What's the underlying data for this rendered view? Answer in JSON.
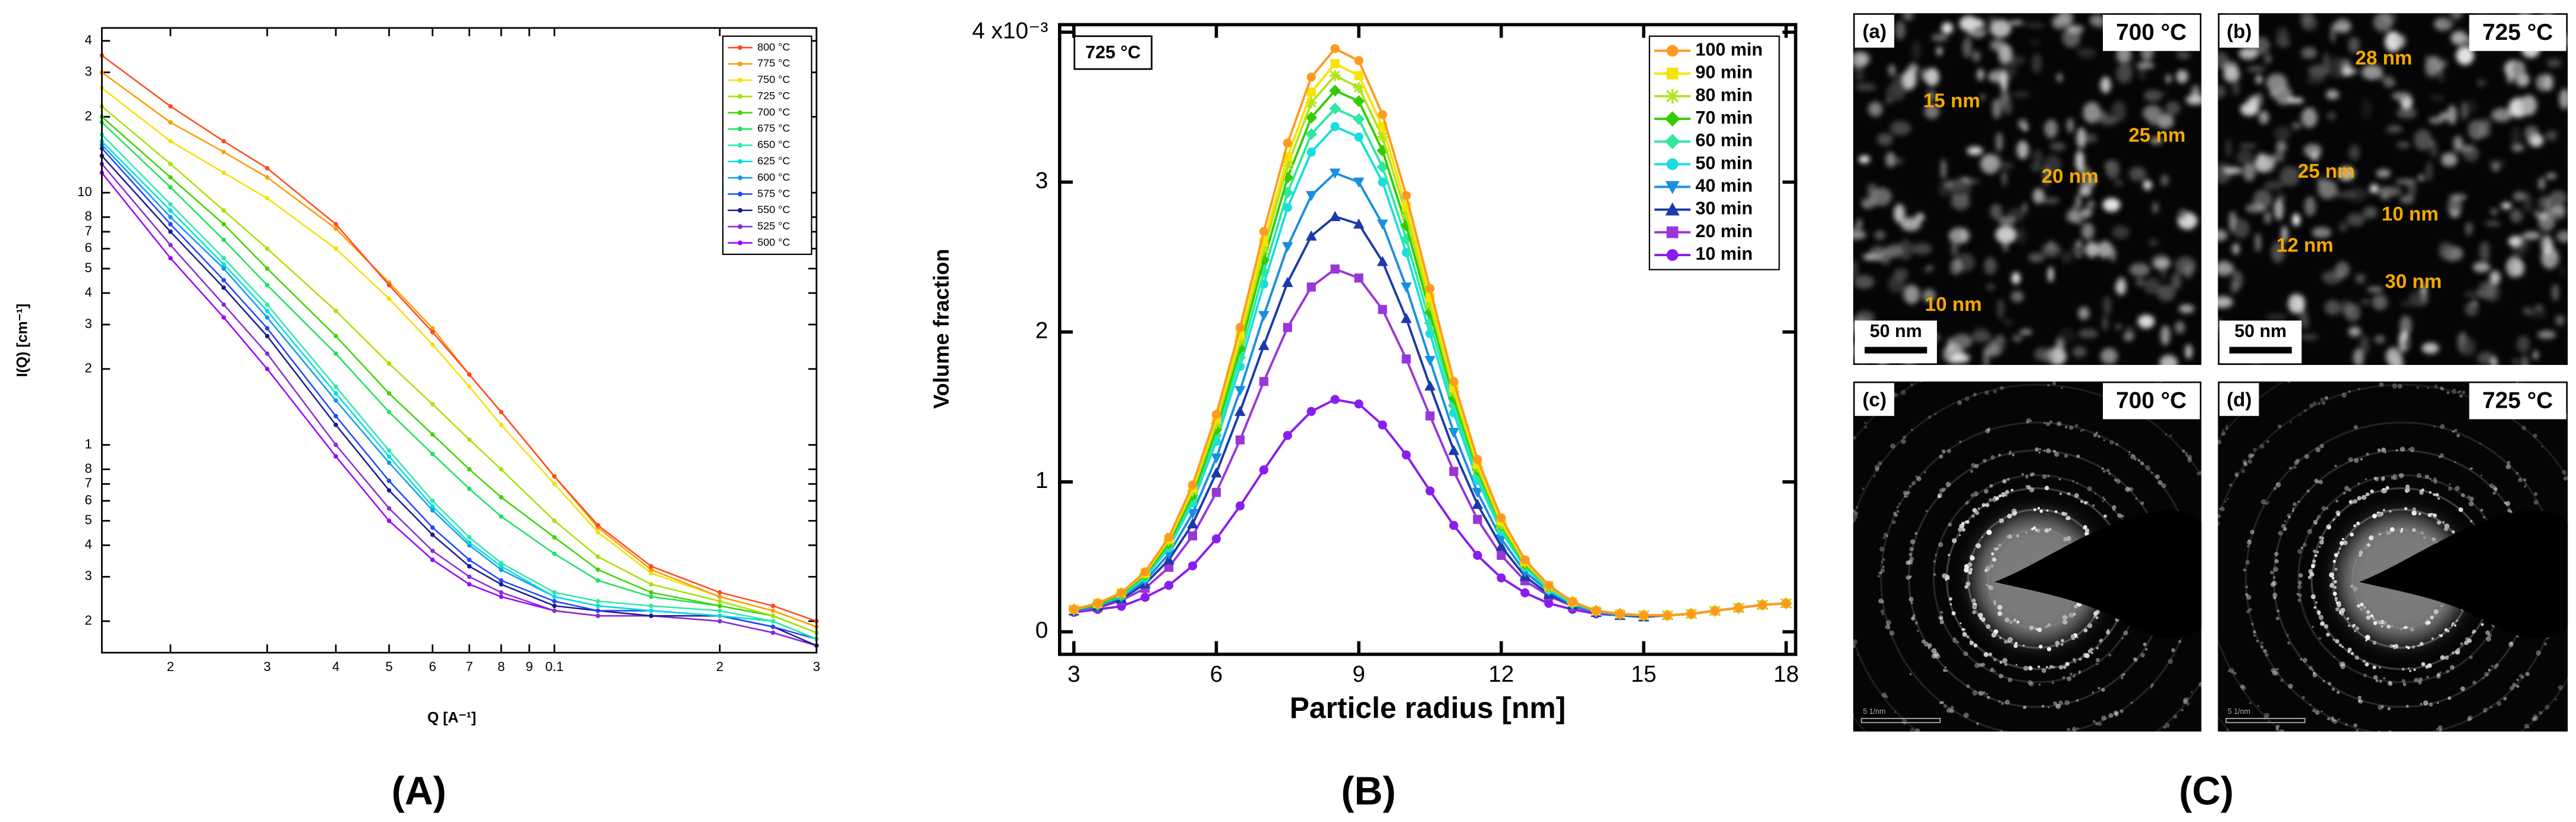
{
  "chart_data": [
    {
      "type": "line",
      "label": "(A)",
      "xlabel": "Q [A⁻¹]",
      "ylabel": "I(Q) [cm⁻¹]",
      "xlog": true,
      "ylog": true,
      "xlim": [
        0.015,
        0.3
      ],
      "ylim": [
        0.15,
        45
      ],
      "xticks": [
        {
          "value": 0.02,
          "label": "2"
        },
        {
          "value": 0.03,
          "label": "3"
        },
        {
          "value": 0.04,
          "label": "4"
        },
        {
          "value": 0.05,
          "label": "5"
        },
        {
          "value": 0.06,
          "label": "6"
        },
        {
          "value": 0.07,
          "label": "7"
        },
        {
          "value": 0.08,
          "label": "8"
        },
        {
          "value": 0.09,
          "label": "9"
        },
        0.1,
        {
          "value": 0.2,
          "label": "2"
        },
        {
          "value": 0.3,
          "label": "3"
        }
      ],
      "yticks": [
        {
          "value": 40,
          "label": "4"
        },
        {
          "value": 30,
          "label": "3"
        },
        {
          "value": 20,
          "label": "2"
        },
        10,
        8,
        7,
        6,
        5,
        4,
        3,
        2,
        1,
        {
          "value": 0.8,
          "label": "8"
        },
        {
          "value": 0.7,
          "label": "7"
        },
        {
          "value": 0.6,
          "label": "6"
        },
        {
          "value": 0.5,
          "label": "5"
        },
        {
          "value": 0.4,
          "label": "4"
        },
        {
          "value": 0.3,
          "label": "3"
        },
        {
          "value": 0.2,
          "label": "2"
        }
      ],
      "legend": "upper right",
      "x": [
        0.015,
        0.02,
        0.025,
        0.03,
        0.04,
        0.05,
        0.06,
        0.07,
        0.08,
        0.1,
        0.12,
        0.15,
        0.2,
        0.25,
        0.3
      ],
      "series": [
        {
          "name": "800 °C",
          "color": "#ff4a1c",
          "values": [
            35,
            22,
            16,
            12.5,
            7.5,
            4.3,
            2.8,
            1.9,
            1.35,
            0.75,
            0.48,
            0.33,
            0.26,
            0.23,
            0.2
          ]
        },
        {
          "name": "775 °C",
          "color": "#ff9a00",
          "values": [
            30,
            19,
            14.5,
            11.5,
            7.2,
            4.4,
            2.9,
            1.9,
            1.35,
            0.75,
            0.47,
            0.32,
            0.25,
            0.22,
            0.19
          ]
        },
        {
          "name": "750 °C",
          "color": "#f2e200",
          "values": [
            26,
            16,
            12,
            9.5,
            6.0,
            3.8,
            2.5,
            1.7,
            1.2,
            0.7,
            0.45,
            0.31,
            0.25,
            0.22,
            0.19
          ]
        },
        {
          "name": "725 °C",
          "color": "#a8e000",
          "values": [
            22,
            13,
            8.5,
            6.0,
            3.4,
            2.1,
            1.45,
            1.05,
            0.8,
            0.5,
            0.36,
            0.28,
            0.24,
            0.21,
            0.18
          ]
        },
        {
          "name": "700 °C",
          "color": "#3fd400",
          "values": [
            20,
            11.5,
            7.5,
            5.0,
            2.7,
            1.6,
            1.1,
            0.8,
            0.62,
            0.43,
            0.32,
            0.26,
            0.23,
            0.21,
            0.18
          ]
        },
        {
          "name": "675 °C",
          "color": "#1fe060",
          "values": [
            19,
            10.5,
            6.5,
            4.3,
            2.3,
            1.35,
            0.92,
            0.67,
            0.52,
            0.37,
            0.29,
            0.25,
            0.23,
            0.21,
            0.18
          ]
        },
        {
          "name": "650 °C",
          "color": "#2ee8a8",
          "values": [
            17,
            9,
            5.5,
            3.6,
            1.7,
            0.95,
            0.6,
            0.43,
            0.34,
            0.26,
            0.24,
            0.23,
            0.22,
            0.2,
            0.17
          ]
        },
        {
          "name": "625 °C",
          "color": "#00dede",
          "values": [
            16,
            8.5,
            5.2,
            3.4,
            1.6,
            0.9,
            0.57,
            0.41,
            0.33,
            0.25,
            0.23,
            0.22,
            0.21,
            0.2,
            0.17
          ]
        },
        {
          "name": "600 °C",
          "color": "#0a9cf0",
          "values": [
            15.5,
            8,
            5,
            3.2,
            1.5,
            0.85,
            0.55,
            0.4,
            0.32,
            0.25,
            0.23,
            0.22,
            0.21,
            0.2,
            0.17
          ]
        },
        {
          "name": "575 °C",
          "color": "#1f45ff",
          "values": [
            15,
            7.5,
            4.5,
            2.9,
            1.3,
            0.72,
            0.47,
            0.35,
            0.29,
            0.24,
            0.22,
            0.22,
            0.21,
            0.19,
            0.17
          ]
        },
        {
          "name": "550 °C",
          "color": "#1a1a8c",
          "values": [
            14,
            7,
            4.2,
            2.7,
            1.2,
            0.66,
            0.44,
            0.33,
            0.28,
            0.23,
            0.22,
            0.21,
            0.21,
            0.19,
            0.16
          ]
        },
        {
          "name": "525 °C",
          "color": "#8a2ccf",
          "values": [
            13,
            6.2,
            3.6,
            2.3,
            1.0,
            0.56,
            0.38,
            0.3,
            0.26,
            0.22,
            0.21,
            0.21,
            0.2,
            0.18,
            0.16
          ]
        },
        {
          "name": "500 °C",
          "color": "#9a00ff",
          "values": [
            12,
            5.5,
            3.2,
            2.0,
            0.9,
            0.5,
            0.35,
            0.28,
            0.25,
            0.22,
            0.21,
            0.21,
            0.2,
            0.18,
            0.16
          ]
        }
      ]
    },
    {
      "type": "line",
      "label": "(B)",
      "annotation": "725 °C",
      "xlabel": "Particle radius [nm]",
      "ylabel": "Volume fraction",
      "xlim": [
        2.7,
        18.2
      ],
      "ylim": [
        -0.15,
        4.05
      ],
      "xticks": [
        3,
        6,
        9,
        12,
        15,
        18
      ],
      "yticks": [
        0,
        1,
        2,
        3,
        {
          "value": 4,
          "label": "4 x10⁻³"
        }
      ],
      "legend": "upper right",
      "x": [
        3,
        3.5,
        4,
        4.5,
        5,
        5.5,
        6,
        6.5,
        7,
        7.5,
        8,
        8.5,
        9,
        9.5,
        10,
        10.5,
        11,
        11.5,
        12,
        12.5,
        13,
        13.5,
        14,
        14.5,
        15,
        15.5,
        16,
        16.5,
        17,
        17.5,
        18
      ],
      "series": [
        {
          "name": "100 min",
          "color": "#ff9a1f",
          "marker": "circle",
          "values": [
            0.15,
            0.19,
            0.26,
            0.4,
            0.63,
            0.98,
            1.45,
            2.03,
            2.67,
            3.26,
            3.7,
            3.89,
            3.81,
            3.45,
            2.91,
            2.29,
            1.67,
            1.15,
            0.76,
            0.48,
            0.31,
            0.2,
            0.14,
            0.12,
            0.11,
            0.11,
            0.12,
            0.14,
            0.16,
            0.18,
            0.19
          ]
        },
        {
          "name": "90 min",
          "color": "#f5e400",
          "marker": "square",
          "values": [
            0.15,
            0.19,
            0.26,
            0.39,
            0.62,
            0.96,
            1.42,
            1.98,
            2.6,
            3.17,
            3.6,
            3.79,
            3.71,
            3.37,
            2.84,
            2.23,
            1.63,
            1.12,
            0.74,
            0.47,
            0.31,
            0.2,
            0.14,
            0.12,
            0.11,
            0.11,
            0.12,
            0.14,
            0.16,
            0.18,
            0.19
          ]
        },
        {
          "name": "80 min",
          "color": "#b2e41c",
          "marker": "star",
          "values": [
            0.15,
            0.19,
            0.26,
            0.39,
            0.61,
            0.94,
            1.39,
            1.94,
            2.55,
            3.11,
            3.53,
            3.71,
            3.63,
            3.3,
            2.78,
            2.18,
            1.6,
            1.1,
            0.72,
            0.46,
            0.3,
            0.2,
            0.14,
            0.12,
            0.11,
            0.11,
            0.12,
            0.14,
            0.16,
            0.18,
            0.19
          ]
        },
        {
          "name": "70 min",
          "color": "#33cc00",
          "marker": "diamond",
          "values": [
            0.15,
            0.18,
            0.25,
            0.38,
            0.59,
            0.91,
            1.35,
            1.89,
            2.48,
            3.03,
            3.43,
            3.61,
            3.54,
            3.21,
            2.71,
            2.13,
            1.56,
            1.08,
            0.71,
            0.45,
            0.3,
            0.2,
            0.14,
            0.12,
            0.11,
            0.11,
            0.12,
            0.14,
            0.16,
            0.18,
            0.19
          ]
        },
        {
          "name": "60 min",
          "color": "#2ee8a0",
          "marker": "diamond",
          "values": [
            0.15,
            0.18,
            0.25,
            0.37,
            0.58,
            0.89,
            1.31,
            1.83,
            2.4,
            2.93,
            3.32,
            3.49,
            3.42,
            3.1,
            2.62,
            2.06,
            1.51,
            1.04,
            0.69,
            0.44,
            0.29,
            0.19,
            0.14,
            0.12,
            0.11,
            0.11,
            0.12,
            0.14,
            0.16,
            0.18,
            0.19
          ]
        },
        {
          "name": "50 min",
          "color": "#19dede",
          "marker": "circle",
          "values": [
            0.15,
            0.18,
            0.24,
            0.36,
            0.56,
            0.86,
            1.27,
            1.77,
            2.32,
            2.83,
            3.2,
            3.37,
            3.3,
            3.0,
            2.53,
            1.99,
            1.46,
            1.01,
            0.67,
            0.43,
            0.28,
            0.19,
            0.14,
            0.12,
            0.11,
            0.11,
            0.12,
            0.14,
            0.16,
            0.18,
            0.19
          ]
        },
        {
          "name": "40 min",
          "color": "#1a8fe0",
          "marker": "triangle-down",
          "values": [
            0.14,
            0.17,
            0.23,
            0.34,
            0.52,
            0.79,
            1.16,
            1.61,
            2.11,
            2.57,
            2.91,
            3.06,
            3.0,
            2.72,
            2.3,
            1.81,
            1.33,
            0.93,
            0.62,
            0.4,
            0.27,
            0.18,
            0.13,
            0.11,
            0.11,
            0.11,
            0.12,
            0.14,
            0.16,
            0.18,
            0.19
          ]
        },
        {
          "name": "30 min",
          "color": "#1c3aa8",
          "marker": "triangle-up",
          "values": [
            0.14,
            0.17,
            0.22,
            0.32,
            0.48,
            0.72,
            1.06,
            1.47,
            1.91,
            2.33,
            2.64,
            2.77,
            2.72,
            2.47,
            2.09,
            1.64,
            1.21,
            0.85,
            0.57,
            0.37,
            0.25,
            0.18,
            0.13,
            0.11,
            0.1,
            0.11,
            0.12,
            0.14,
            0.16,
            0.18,
            0.19
          ]
        },
        {
          "name": "20 min",
          "color": "#9a36d6",
          "marker": "square",
          "values": [
            0.14,
            0.16,
            0.21,
            0.29,
            0.43,
            0.64,
            0.93,
            1.28,
            1.67,
            2.03,
            2.3,
            2.42,
            2.36,
            2.15,
            1.82,
            1.44,
            1.07,
            0.75,
            0.51,
            0.34,
            0.24,
            0.17,
            0.13,
            0.11,
            0.1,
            0.11,
            0.12,
            0.14,
            0.16,
            0.18,
            0.19
          ]
        },
        {
          "name": "10 min",
          "color": "#8a1cf0",
          "marker": "circle",
          "values": [
            0.13,
            0.15,
            0.17,
            0.23,
            0.31,
            0.44,
            0.62,
            0.84,
            1.08,
            1.31,
            1.47,
            1.55,
            1.52,
            1.38,
            1.18,
            0.94,
            0.71,
            0.51,
            0.36,
            0.26,
            0.19,
            0.15,
            0.12,
            0.11,
            0.1,
            0.11,
            0.12,
            0.14,
            0.16,
            0.18,
            0.19
          ]
        }
      ]
    }
  ],
  "micrographs": {
    "label": "(C)",
    "panels": [
      {
        "tag": "(a)",
        "temperature": "700 °C",
        "kind": "image",
        "scale_bar": "50 nm",
        "annotations": [
          "15 nm",
          "25 nm",
          "20 nm",
          "10 nm"
        ]
      },
      {
        "tag": "(b)",
        "temperature": "725 °C",
        "kind": "image",
        "scale_bar": "50 nm",
        "annotations": [
          "28 nm",
          "25 nm",
          "10 nm",
          "12 nm",
          "30 nm"
        ]
      },
      {
        "tag": "(c)",
        "temperature": "700 °C",
        "kind": "diffraction",
        "scale_bar": "5 1/nm",
        "annotations": []
      },
      {
        "tag": "(d)",
        "temperature": "725 °C",
        "kind": "diffraction",
        "scale_bar": "5 1/nm",
        "annotations": []
      }
    ]
  }
}
